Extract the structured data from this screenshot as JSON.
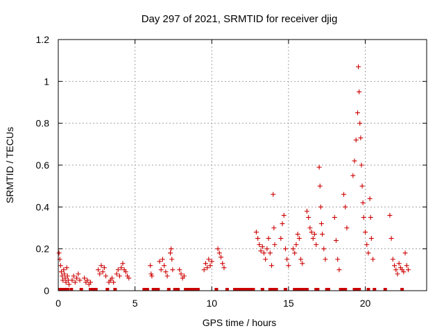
{
  "chart_data": {
    "type": "scatter",
    "title": "Day 297 of 2021, SRMTID for receiver djig",
    "xlabel": "GPS time / hours",
    "ylabel": "SRMTID / TECUs",
    "xlim": [
      0,
      24
    ],
    "ylim": [
      0,
      1.2
    ],
    "xticks": [
      0,
      5,
      10,
      15,
      20
    ],
    "xtick_labels": [
      "0",
      "5",
      "10",
      "15",
      "20"
    ],
    "yticks": [
      0,
      0.2,
      0.4,
      0.6,
      0.8,
      1.0,
      1.2
    ],
    "ytick_labels": [
      "0",
      "0.2",
      "0.4",
      "0.6",
      "0.8",
      "1",
      "1.2"
    ],
    "grid": true,
    "marker": "plus",
    "color": "#cc0000",
    "series": [
      {
        "name": "SRMTID",
        "points": [
          [
            0.05,
            0.18
          ],
          [
            0.1,
            0.15
          ],
          [
            0.15,
            0.12
          ],
          [
            0.2,
            0.09
          ],
          [
            0.25,
            0.07
          ],
          [
            0.3,
            0.05
          ],
          [
            0.35,
            0.1
          ],
          [
            0.4,
            0.08
          ],
          [
            0.45,
            0.06
          ],
          [
            0.5,
            0.04
          ],
          [
            0.55,
            0.11
          ],
          [
            0.6,
            0.07
          ],
          [
            0.65,
            0.05
          ],
          [
            0.7,
            0.03
          ],
          [
            0.9,
            0.05
          ],
          [
            1.0,
            0.07
          ],
          [
            1.1,
            0.04
          ],
          [
            1.2,
            0.06
          ],
          [
            1.3,
            0.08
          ],
          [
            1.4,
            0.05
          ],
          [
            1.7,
            0.06
          ],
          [
            1.8,
            0.04
          ],
          [
            1.9,
            0.05
          ],
          [
            2.0,
            0.03
          ],
          [
            2.1,
            0.04
          ],
          [
            2.6,
            0.1
          ],
          [
            2.7,
            0.08
          ],
          [
            2.8,
            0.12
          ],
          [
            2.9,
            0.09
          ],
          [
            3.0,
            0.11
          ],
          [
            3.1,
            0.07
          ],
          [
            3.3,
            0.04
          ],
          [
            3.4,
            0.05
          ],
          [
            3.5,
            0.06
          ],
          [
            3.6,
            0.04
          ],
          [
            3.8,
            0.08
          ],
          [
            3.9,
            0.1
          ],
          [
            4.0,
            0.07
          ],
          [
            4.1,
            0.11
          ],
          [
            4.2,
            0.13
          ],
          [
            4.3,
            0.1
          ],
          [
            4.4,
            0.09
          ],
          [
            4.5,
            0.07
          ],
          [
            4.6,
            0.06
          ],
          [
            6.0,
            0.12
          ],
          [
            6.05,
            0.08
          ],
          [
            6.1,
            0.07
          ],
          [
            6.6,
            0.14
          ],
          [
            6.7,
            0.1
          ],
          [
            6.8,
            0.15
          ],
          [
            6.9,
            0.12
          ],
          [
            7.0,
            0.09
          ],
          [
            7.1,
            0.07
          ],
          [
            7.3,
            0.18
          ],
          [
            7.35,
            0.2
          ],
          [
            7.4,
            0.15
          ],
          [
            7.45,
            0.1
          ],
          [
            7.9,
            0.1
          ],
          [
            8.0,
            0.08
          ],
          [
            8.1,
            0.06
          ],
          [
            8.2,
            0.07
          ],
          [
            9.5,
            0.1
          ],
          [
            9.6,
            0.13
          ],
          [
            9.7,
            0.11
          ],
          [
            9.8,
            0.15
          ],
          [
            9.9,
            0.12
          ],
          [
            10.0,
            0.14
          ],
          [
            10.4,
            0.2
          ],
          [
            10.5,
            0.18
          ],
          [
            10.6,
            0.16
          ],
          [
            10.7,
            0.13
          ],
          [
            10.8,
            0.11
          ],
          [
            12.9,
            0.28
          ],
          [
            13.0,
            0.25
          ],
          [
            13.1,
            0.22
          ],
          [
            13.2,
            0.19
          ],
          [
            13.3,
            0.21
          ],
          [
            13.4,
            0.18
          ],
          [
            13.5,
            0.15
          ],
          [
            13.6,
            0.2
          ],
          [
            13.7,
            0.25
          ],
          [
            13.8,
            0.18
          ],
          [
            13.9,
            0.12
          ],
          [
            14.0,
            0.46
          ],
          [
            14.05,
            0.3
          ],
          [
            14.1,
            0.22
          ],
          [
            14.5,
            0.25
          ],
          [
            14.6,
            0.32
          ],
          [
            14.7,
            0.36
          ],
          [
            14.8,
            0.2
          ],
          [
            14.9,
            0.15
          ],
          [
            15.0,
            0.12
          ],
          [
            15.3,
            0.2
          ],
          [
            15.4,
            0.18
          ],
          [
            15.5,
            0.22
          ],
          [
            15.6,
            0.27
          ],
          [
            15.7,
            0.25
          ],
          [
            15.8,
            0.15
          ],
          [
            15.9,
            0.13
          ],
          [
            16.2,
            0.38
          ],
          [
            16.3,
            0.35
          ],
          [
            16.4,
            0.3
          ],
          [
            16.5,
            0.28
          ],
          [
            16.6,
            0.25
          ],
          [
            16.7,
            0.27
          ],
          [
            16.8,
            0.22
          ],
          [
            17.0,
            0.59
          ],
          [
            17.05,
            0.5
          ],
          [
            17.1,
            0.4
          ],
          [
            17.15,
            0.32
          ],
          [
            17.2,
            0.27
          ],
          [
            17.3,
            0.2
          ],
          [
            17.4,
            0.15
          ],
          [
            18.0,
            0.35
          ],
          [
            18.1,
            0.24
          ],
          [
            18.2,
            0.15
          ],
          [
            18.3,
            0.1
          ],
          [
            18.6,
            0.46
          ],
          [
            18.7,
            0.4
          ],
          [
            18.8,
            0.3
          ],
          [
            19.2,
            0.55
          ],
          [
            19.3,
            0.62
          ],
          [
            19.4,
            0.72
          ],
          [
            19.5,
            0.85
          ],
          [
            19.55,
            1.07
          ],
          [
            19.6,
            0.95
          ],
          [
            19.65,
            0.8
          ],
          [
            19.7,
            0.73
          ],
          [
            19.75,
            0.6
          ],
          [
            19.8,
            0.5
          ],
          [
            19.85,
            0.42
          ],
          [
            19.9,
            0.35
          ],
          [
            20.0,
            0.28
          ],
          [
            20.1,
            0.22
          ],
          [
            20.2,
            0.18
          ],
          [
            20.3,
            0.44
          ],
          [
            20.35,
            0.35
          ],
          [
            20.4,
            0.25
          ],
          [
            20.5,
            0.15
          ],
          [
            21.6,
            0.36
          ],
          [
            21.7,
            0.25
          ],
          [
            21.8,
            0.15
          ],
          [
            21.9,
            0.12
          ],
          [
            22.0,
            0.1
          ],
          [
            22.1,
            0.08
          ],
          [
            22.2,
            0.13
          ],
          [
            22.3,
            0.11
          ],
          [
            22.4,
            0.1
          ],
          [
            22.5,
            0.09
          ],
          [
            22.6,
            0.18
          ],
          [
            22.7,
            0.12
          ],
          [
            22.8,
            0.1
          ]
        ],
        "zero_points": [
          0.1,
          0.2,
          0.3,
          0.4,
          0.5,
          0.6,
          0.85,
          1.5,
          2.1,
          2.2,
          2.3,
          2.45,
          3.2,
          3.7,
          5.6,
          5.7,
          5.8,
          6.2,
          6.3,
          6.4,
          6.5,
          7.2,
          7.6,
          7.7,
          7.8,
          8.3,
          8.4,
          8.5,
          8.6,
          8.7,
          8.8,
          9.0,
          9.1,
          10.3,
          11.0,
          11.5,
          11.6,
          11.7,
          11.8,
          11.9,
          12.0,
          12.1,
          12.2,
          12.3,
          12.4,
          12.5,
          12.6,
          12.7,
          13.3,
          13.8,
          13.9,
          14.0,
          14.1,
          14.2,
          14.8,
          15.4,
          15.6,
          15.7,
          15.8,
          16.0,
          16.2,
          16.8,
          16.9,
          17.5,
          17.6,
          18.4,
          18.5,
          18.6,
          18.7,
          19.3,
          19.5,
          19.6,
          20.2,
          20.6,
          21.3,
          22.4
        ]
      }
    ]
  }
}
